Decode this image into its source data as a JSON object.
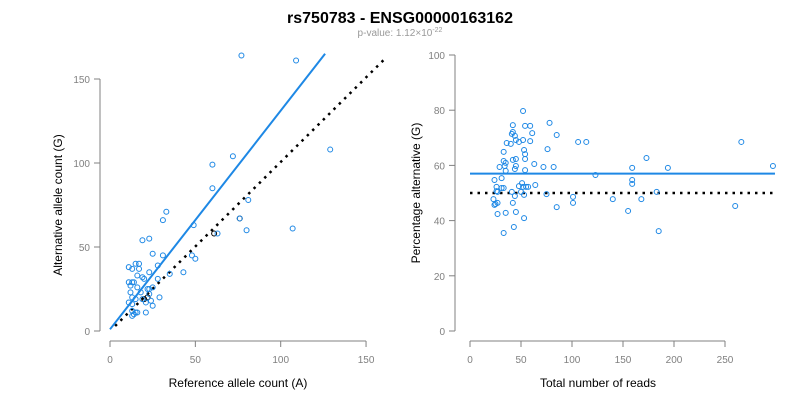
{
  "title": "rs750783 - ENSG00000163162",
  "subtitle": {
    "prefix": "p-value: 1.12×10",
    "exponent": "-22"
  },
  "colors": {
    "point": "#1e88e5",
    "fit": "#1e88e5",
    "reference": "#000000",
    "axis": "#808080",
    "nonsig": "#000000"
  },
  "chart_data": [
    {
      "type": "scatter",
      "xlabel": "Reference allele count (A)",
      "ylabel": "Alternative allele count (G)",
      "xlim": [
        0,
        160
      ],
      "ylim": [
        0,
        165
      ],
      "xticks": [
        "0",
        "50",
        "100",
        "150"
      ],
      "yticks": [
        "0",
        "50",
        "100",
        "150"
      ],
      "grid": false,
      "points": [
        [
          77,
          164
        ],
        [
          109,
          161
        ],
        [
          60,
          99
        ],
        [
          72,
          104
        ],
        [
          60,
          85
        ],
        [
          81,
          78
        ],
        [
          33,
          71
        ],
        [
          31,
          66
        ],
        [
          76,
          67
        ],
        [
          63,
          58
        ],
        [
          80,
          60
        ],
        [
          107,
          61
        ],
        [
          129,
          108
        ],
        [
          49,
          63
        ],
        [
          48,
          45
        ],
        [
          50,
          43
        ],
        [
          19,
          54
        ],
        [
          23,
          55
        ],
        [
          25,
          46
        ],
        [
          31,
          45
        ],
        [
          28,
          39
        ],
        [
          43,
          35
        ],
        [
          35,
          34
        ],
        [
          11,
          38
        ],
        [
          13,
          37
        ],
        [
          15,
          40
        ],
        [
          17,
          40
        ],
        [
          17,
          37
        ],
        [
          23,
          35
        ],
        [
          16,
          33
        ],
        [
          19,
          32
        ],
        [
          20,
          31
        ],
        [
          11,
          29
        ],
        [
          13,
          29
        ],
        [
          14,
          29
        ],
        [
          28,
          31
        ],
        [
          12,
          27
        ],
        [
          16,
          26
        ],
        [
          22,
          25
        ],
        [
          23,
          25
        ],
        [
          25,
          26
        ],
        [
          12,
          23
        ],
        [
          18,
          23
        ],
        [
          23,
          22
        ],
        [
          29,
          20
        ],
        [
          13,
          20
        ],
        [
          15,
          19
        ],
        [
          19,
          19
        ],
        [
          24,
          18
        ],
        [
          11,
          17
        ],
        [
          13,
          16
        ],
        [
          21,
          17
        ],
        [
          25,
          15
        ],
        [
          13,
          12
        ],
        [
          15,
          11
        ],
        [
          14,
          10
        ],
        [
          16,
          11
        ],
        [
          21,
          11
        ],
        [
          13,
          9
        ]
      ],
      "nonsig_points": [
        [
          61,
          58
        ],
        [
          76,
          67
        ],
        [
          20,
          19
        ],
        [
          22,
          20
        ]
      ],
      "fit_line": [
        [
          0,
          1
        ],
        [
          126,
          165
        ]
      ],
      "reference_line": [
        [
          3,
          3
        ],
        [
          162,
          163
        ]
      ]
    },
    {
      "type": "scatter",
      "xlabel": "Total number of reads",
      "ylabel": "Percentage alternative (G)",
      "xlim": [
        0,
        300
      ],
      "ylim": [
        0,
        100
      ],
      "xticks": [
        "0",
        "50",
        "100",
        "150",
        "200",
        "250"
      ],
      "yticks": [
        "0",
        "20",
        "40",
        "60",
        "80",
        "100"
      ],
      "grid": false,
      "points": [
        [
          52,
          79.7
        ],
        [
          42,
          74.6
        ],
        [
          54,
          74.3
        ],
        [
          59,
          74.3
        ],
        [
          78,
          75.4
        ],
        [
          41,
          71.4
        ],
        [
          42,
          72.1
        ],
        [
          44,
          70.7
        ],
        [
          61,
          71.7
        ],
        [
          85,
          71
        ],
        [
          36,
          68.1
        ],
        [
          40,
          67.8
        ],
        [
          45,
          69.2
        ],
        [
          48,
          68.5
        ],
        [
          52,
          69.2
        ],
        [
          59,
          68.8
        ],
        [
          106,
          68.5
        ],
        [
          114,
          68.5
        ],
        [
          76,
          65.9
        ],
        [
          33,
          64.9
        ],
        [
          53,
          65.6
        ],
        [
          54,
          64.1
        ],
        [
          54,
          62.3
        ],
        [
          42,
          62
        ],
        [
          45,
          62.3
        ],
        [
          33,
          61.6
        ],
        [
          35,
          60.9
        ],
        [
          29,
          59.4
        ],
        [
          34,
          59.8
        ],
        [
          35,
          58
        ],
        [
          45,
          59.8
        ],
        [
          44,
          58.7
        ],
        [
          54,
          58.3
        ],
        [
          63,
          60.5
        ],
        [
          72,
          59.4
        ],
        [
          82,
          59.4
        ],
        [
          123,
          56.5
        ],
        [
          24,
          54.7
        ],
        [
          31,
          55.4
        ],
        [
          51,
          53.6
        ],
        [
          48,
          52.5
        ],
        [
          52,
          52.2
        ],
        [
          55,
          52.2
        ],
        [
          57,
          52.2
        ],
        [
          64,
          52.9
        ],
        [
          26,
          52.2
        ],
        [
          31,
          51.8
        ],
        [
          33,
          51.8
        ],
        [
          26,
          50.7
        ],
        [
          27,
          50.4
        ],
        [
          41,
          50.4
        ],
        [
          50,
          50.4
        ],
        [
          44,
          48.9
        ],
        [
          53,
          49.3
        ],
        [
          75,
          49.6
        ],
        [
          101,
          48.6
        ],
        [
          101,
          46.4
        ],
        [
          23,
          47.8
        ],
        [
          42,
          46.4
        ],
        [
          24,
          45.7
        ],
        [
          25,
          46
        ],
        [
          27,
          46.4
        ],
        [
          85,
          44.9
        ],
        [
          27,
          42.4
        ],
        [
          35,
          42.8
        ],
        [
          45,
          43.1
        ],
        [
          53,
          40.9
        ],
        [
          43,
          37.7
        ],
        [
          33,
          35.5
        ],
        [
          266,
          68.5
        ],
        [
          297,
          59.8
        ],
        [
          173,
          62.7
        ],
        [
          194,
          59.1
        ],
        [
          159,
          59.1
        ],
        [
          159,
          53.3
        ],
        [
          140,
          47.8
        ],
        [
          168,
          47.8
        ],
        [
          183,
          50.4
        ],
        [
          155,
          43.5
        ],
        [
          260,
          45.3
        ],
        [
          185,
          36.2
        ],
        [
          159,
          54.7
        ]
      ],
      "mean_line": {
        "y": 57,
        "x": [
          0,
          299
        ]
      },
      "reference_line": {
        "y": 50,
        "x": [
          0,
          299
        ]
      }
    }
  ]
}
